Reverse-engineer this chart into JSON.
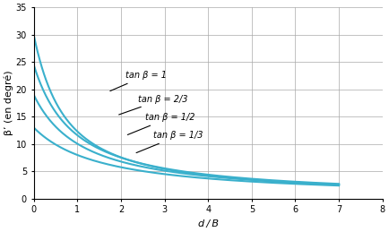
{
  "ylabel": "β’ (en degré)",
  "xlabel": "d / B",
  "xlim": [
    0,
    8
  ],
  "ylim": [
    0,
    35
  ],
  "xticks": [
    0,
    1,
    2,
    3,
    4,
    5,
    6,
    7,
    8
  ],
  "yticks": [
    0,
    5,
    10,
    15,
    20,
    25,
    30,
    35
  ],
  "curves": [
    {
      "tan_beta": 1.0,
      "beta0_deg": 30.0,
      "label": "tan β = 1"
    },
    {
      "tan_beta": 0.6667,
      "beta0_deg": 24.5,
      "label": "tan β = 2/3"
    },
    {
      "tan_beta": 0.5,
      "beta0_deg": 19.0,
      "label": "tan β = 1/2"
    },
    {
      "tan_beta": 0.3333,
      "beta0_deg": 13.0,
      "label": "tan β = 1/3"
    }
  ],
  "line_color": "#3ab0cc",
  "annotations": [
    {
      "tip_x": 1.7,
      "tip_y": 19.5,
      "txt_x": 2.1,
      "txt_y": 22.5,
      "text": "tan β = 1"
    },
    {
      "tip_x": 1.9,
      "tip_y": 15.2,
      "txt_x": 2.4,
      "txt_y": 18.2,
      "text": "tan β = 2/3"
    },
    {
      "tip_x": 2.1,
      "tip_y": 11.5,
      "txt_x": 2.55,
      "txt_y": 14.8,
      "text": "tan β = 1/2"
    },
    {
      "tip_x": 2.3,
      "tip_y": 8.2,
      "txt_x": 2.75,
      "txt_y": 11.5,
      "text": "tan β = 1/3"
    }
  ],
  "figsize": [
    4.34,
    2.59
  ],
  "dpi": 100,
  "grid_color": "#aaaaaa",
  "tick_fontsize": 7,
  "label_fontsize": 8,
  "ylabel_offset": -0.05
}
